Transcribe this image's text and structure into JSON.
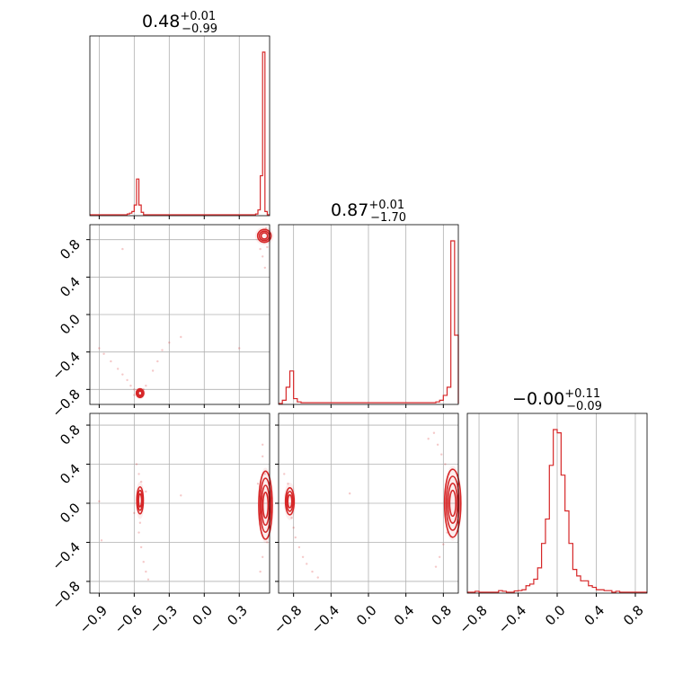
{
  "chart_data": [
    {
      "type": "histogram",
      "panel": "marginal-1",
      "title": {
        "value": "0.48",
        "upper": "+0.01",
        "lower": "−0.99"
      },
      "xlim": [
        -0.98,
        0.56
      ],
      "xticks": [
        -0.9,
        -0.6,
        -0.3,
        0.0,
        0.3
      ],
      "grid": true,
      "bins": [
        {
          "x0": -0.66,
          "x1": -0.64,
          "h": 0.005
        },
        {
          "x0": -0.64,
          "x1": -0.62,
          "h": 0.01
        },
        {
          "x0": -0.62,
          "x1": -0.6,
          "h": 0.02
        },
        {
          "x0": -0.6,
          "x1": -0.58,
          "h": 0.06
        },
        {
          "x0": -0.58,
          "x1": -0.56,
          "h": 0.22
        },
        {
          "x0": -0.56,
          "x1": -0.54,
          "h": 0.06
        },
        {
          "x0": -0.54,
          "x1": -0.52,
          "h": 0.015
        },
        {
          "x0": 0.44,
          "x1": 0.46,
          "h": 0.005
        },
        {
          "x0": 0.46,
          "x1": 0.48,
          "h": 0.03
        },
        {
          "x0": 0.48,
          "x1": 0.5,
          "h": 0.24
        },
        {
          "x0": 0.5,
          "x1": 0.52,
          "h": 1.0
        },
        {
          "x0": 0.52,
          "x1": 0.54,
          "h": 0.02
        }
      ]
    },
    {
      "type": "histogram",
      "panel": "marginal-2",
      "title": {
        "value": "0.87",
        "upper": "+0.01",
        "lower": "−1.70"
      },
      "xlim": [
        -0.96,
        0.96
      ],
      "xticks": [
        -0.8,
        -0.4,
        0.0,
        0.4,
        0.8
      ],
      "grid": true,
      "bins": [
        {
          "x0": -0.92,
          "x1": -0.88,
          "h": 0.02
        },
        {
          "x0": -0.88,
          "x1": -0.84,
          "h": 0.1
        },
        {
          "x0": -0.84,
          "x1": -0.8,
          "h": 0.2
        },
        {
          "x0": -0.8,
          "x1": -0.76,
          "h": 0.03
        },
        {
          "x0": -0.76,
          "x1": -0.72,
          "h": 0.01
        },
        {
          "x0": -0.72,
          "x1": 0.72,
          "h": 0.005
        },
        {
          "x0": 0.72,
          "x1": 0.76,
          "h": 0.01
        },
        {
          "x0": 0.76,
          "x1": 0.8,
          "h": 0.02
        },
        {
          "x0": 0.8,
          "x1": 0.84,
          "h": 0.05
        },
        {
          "x0": 0.84,
          "x1": 0.88,
          "h": 0.1
        },
        {
          "x0": 0.88,
          "x1": 0.92,
          "h": 1.0
        },
        {
          "x0": 0.92,
          "x1": 0.96,
          "h": 0.42
        }
      ]
    },
    {
      "type": "histogram",
      "panel": "marginal-3",
      "title": {
        "value": "−0.00",
        "upper": "+0.11",
        "lower": "−0.09"
      },
      "xlim": [
        -0.92,
        0.92
      ],
      "xticks": [
        -0.8,
        -0.4,
        0.0,
        0.4,
        0.8
      ],
      "grid": true,
      "bins": [
        {
          "x0": -0.84,
          "x1": -0.8,
          "h": 0.006
        },
        {
          "x0": -0.6,
          "x1": -0.56,
          "h": 0.01
        },
        {
          "x0": -0.56,
          "x1": -0.52,
          "h": 0.006
        },
        {
          "x0": -0.44,
          "x1": -0.4,
          "h": 0.008
        },
        {
          "x0": -0.4,
          "x1": -0.36,
          "h": 0.01
        },
        {
          "x0": -0.36,
          "x1": -0.32,
          "h": 0.015
        },
        {
          "x0": -0.32,
          "x1": -0.28,
          "h": 0.04
        },
        {
          "x0": -0.28,
          "x1": -0.24,
          "h": 0.05
        },
        {
          "x0": -0.24,
          "x1": -0.2,
          "h": 0.08
        },
        {
          "x0": -0.2,
          "x1": -0.16,
          "h": 0.15
        },
        {
          "x0": -0.16,
          "x1": -0.12,
          "h": 0.3
        },
        {
          "x0": -0.12,
          "x1": -0.08,
          "h": 0.45
        },
        {
          "x0": -0.08,
          "x1": -0.04,
          "h": 0.78
        },
        {
          "x0": -0.04,
          "x1": 0.0,
          "h": 1.0
        },
        {
          "x0": 0.0,
          "x1": 0.04,
          "h": 0.98
        },
        {
          "x0": 0.04,
          "x1": 0.08,
          "h": 0.72
        },
        {
          "x0": 0.08,
          "x1": 0.12,
          "h": 0.5
        },
        {
          "x0": 0.12,
          "x1": 0.16,
          "h": 0.3
        },
        {
          "x0": 0.16,
          "x1": 0.2,
          "h": 0.14
        },
        {
          "x0": 0.2,
          "x1": 0.24,
          "h": 0.1
        },
        {
          "x0": 0.24,
          "x1": 0.28,
          "h": 0.07
        },
        {
          "x0": 0.28,
          "x1": 0.32,
          "h": 0.07
        },
        {
          "x0": 0.32,
          "x1": 0.36,
          "h": 0.04
        },
        {
          "x0": 0.36,
          "x1": 0.4,
          "h": 0.03
        },
        {
          "x0": 0.4,
          "x1": 0.44,
          "h": 0.015
        },
        {
          "x0": 0.44,
          "x1": 0.48,
          "h": 0.015
        },
        {
          "x0": 0.48,
          "x1": 0.52,
          "h": 0.01
        },
        {
          "x0": 0.52,
          "x1": 0.56,
          "h": 0.01
        },
        {
          "x0": 0.6,
          "x1": 0.64,
          "h": 0.006
        }
      ]
    },
    {
      "type": "scatter-contour",
      "panel": "joint-2-1",
      "xlim": [
        -0.98,
        0.56
      ],
      "ylim": [
        -0.96,
        0.96
      ],
      "xticks": [
        -0.9,
        -0.6,
        -0.3,
        0.0,
        0.3
      ],
      "yticks": [
        -0.8,
        -0.4,
        0.0,
        0.4,
        0.8
      ],
      "grid": true,
      "clusters": [
        {
          "cx": -0.55,
          "cy": -0.84,
          "sx": 0.014,
          "sy": 0.02,
          "rings": 3
        },
        {
          "cx": 0.515,
          "cy": 0.84,
          "sx": 0.025,
          "sy": 0.03,
          "rings": 3
        }
      ],
      "points": [
        [
          -0.9,
          -0.36
        ],
        [
          -0.86,
          -0.42
        ],
        [
          -0.8,
          -0.5
        ],
        [
          -0.74,
          -0.58
        ],
        [
          -0.7,
          -0.64
        ],
        [
          -0.66,
          -0.7
        ],
        [
          -0.63,
          -0.76
        ],
        [
          -0.6,
          -0.8
        ],
        [
          -0.58,
          -0.82
        ],
        [
          -0.6,
          -0.86
        ],
        [
          -0.52,
          -0.8
        ],
        [
          -0.5,
          -0.76
        ],
        [
          -0.44,
          -0.6
        ],
        [
          -0.4,
          -0.5
        ],
        [
          -0.36,
          -0.38
        ],
        [
          -0.3,
          -0.3
        ],
        [
          -0.2,
          -0.24
        ],
        [
          -0.7,
          0.7
        ],
        [
          0.3,
          -0.36
        ],
        [
          0.48,
          0.7
        ],
        [
          0.5,
          0.62
        ],
        [
          0.52,
          0.5
        ],
        [
          0.54,
          0.72
        ],
        [
          0.46,
          0.86
        ],
        [
          0.53,
          0.92
        ]
      ]
    },
    {
      "type": "scatter-contour",
      "panel": "joint-3-1",
      "xlim": [
        -0.98,
        0.56
      ],
      "ylim": [
        -0.92,
        0.92
      ],
      "xticks": [
        -0.9,
        -0.6,
        -0.3,
        0.0,
        0.3
      ],
      "yticks": [
        -0.8,
        -0.4,
        0.0,
        0.4,
        0.8
      ],
      "grid": true,
      "clusters": [
        {
          "cx": -0.55,
          "cy": 0.03,
          "sx": 0.012,
          "sy": 0.06,
          "rings": 3
        },
        {
          "cx": 0.525,
          "cy": -0.02,
          "sx": 0.02,
          "sy": 0.12,
          "rings": 4
        }
      ],
      "points": [
        [
          -0.58,
          0.4
        ],
        [
          -0.56,
          0.3
        ],
        [
          -0.54,
          0.22
        ],
        [
          -0.55,
          -0.2
        ],
        [
          -0.56,
          -0.3
        ],
        [
          -0.54,
          -0.45
        ],
        [
          -0.52,
          -0.6
        ],
        [
          -0.5,
          -0.7
        ],
        [
          -0.48,
          -0.78
        ],
        [
          -0.6,
          -0.1
        ],
        [
          -0.5,
          0.12
        ],
        [
          -0.9,
          0.02
        ],
        [
          -0.88,
          -0.38
        ],
        [
          -0.2,
          0.08
        ],
        [
          0.5,
          0.6
        ],
        [
          0.5,
          0.48
        ],
        [
          0.52,
          0.3
        ],
        [
          0.54,
          -0.4
        ],
        [
          0.5,
          -0.55
        ],
        [
          0.48,
          -0.7
        ],
        [
          0.46,
          0.2
        ],
        [
          0.54,
          -0.2
        ]
      ]
    },
    {
      "type": "scatter-contour",
      "panel": "joint-3-2",
      "xlim": [
        -0.96,
        0.96
      ],
      "ylim": [
        -0.92,
        0.92
      ],
      "xticks": [
        -0.8,
        -0.4,
        0.0,
        0.4,
        0.8
      ],
      "yticks": [
        -0.8,
        -0.4,
        0.0,
        0.4,
        0.8
      ],
      "grid": true,
      "clusters": [
        {
          "cx": -0.84,
          "cy": 0.02,
          "sx": 0.02,
          "sy": 0.06,
          "rings": 3
        },
        {
          "cx": 0.9,
          "cy": 0.0,
          "sx": 0.03,
          "sy": 0.12,
          "rings": 4
        }
      ],
      "points": [
        [
          -0.82,
          -0.15
        ],
        [
          -0.8,
          -0.25
        ],
        [
          -0.78,
          -0.35
        ],
        [
          -0.74,
          -0.45
        ],
        [
          -0.7,
          -0.55
        ],
        [
          -0.66,
          -0.62
        ],
        [
          -0.6,
          -0.7
        ],
        [
          -0.54,
          -0.76
        ],
        [
          -0.86,
          0.2
        ],
        [
          -0.9,
          0.3
        ],
        [
          0.7,
          0.72
        ],
        [
          0.74,
          0.6
        ],
        [
          0.78,
          0.5
        ],
        [
          0.82,
          0.4
        ],
        [
          0.86,
          0.3
        ],
        [
          0.84,
          -0.3
        ],
        [
          0.8,
          -0.42
        ],
        [
          0.76,
          -0.55
        ],
        [
          0.72,
          -0.65
        ],
        [
          0.64,
          0.66
        ],
        [
          -0.2,
          0.1
        ],
        [
          0.9,
          -0.2
        ]
      ]
    }
  ]
}
